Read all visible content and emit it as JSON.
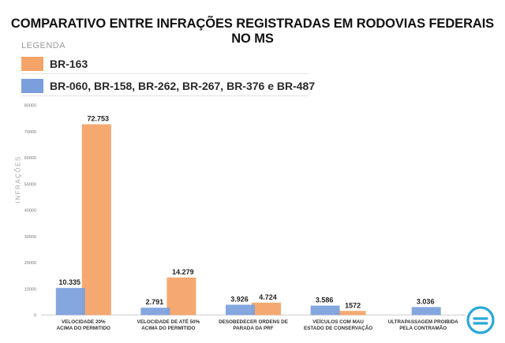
{
  "title": "COMPARATIVO ENTRE INFRAÇÕES REGISTRADAS EM RODOVIAS FEDERAIS NO MS",
  "legend": {
    "heading": "LEGENDA",
    "items": [
      {
        "label": "BR-163",
        "color": "#f4a469"
      },
      {
        "label": "BR-060, BR-158, BR-262, BR-267, BR-376 e BR-487",
        "color": "#7b9fdc"
      }
    ]
  },
  "logo": {
    "icon": "circled-e-logo-icon",
    "color": "#2aa8d8"
  },
  "chart_data": {
    "type": "bar",
    "ylabel": "INFRAÇÕES",
    "ylim": [
      0,
      80000
    ],
    "yticks": [
      0,
      10000,
      20000,
      30000,
      40000,
      50000,
      60000,
      70000,
      80000
    ],
    "grid": false,
    "legend_position": "top-left",
    "categories": [
      [
        "VELOCIDADE 20%",
        "ACIMA DO PERMITIDO"
      ],
      [
        "VELOCIDADE DE ATÉ 50%",
        "ACIMA DO PERMITIDO"
      ],
      [
        "DESOBEDECER ORDENS DE",
        "PARADA DA PRF"
      ],
      [
        "VEÍCULOS COM MAU",
        "ESTADO DE CONSERVAÇÃO"
      ],
      [
        "ULTRAPASSAGEM PROIBIDA",
        "PELA CONTRAMÃO"
      ]
    ],
    "series": [
      {
        "name": "BR-060, BR-158, BR-262, BR-267, BR-376 e BR-487",
        "color": "#7b9fdc",
        "values": [
          10335,
          2791,
          3926,
          3586,
          3036
        ],
        "labels": [
          "10.335",
          "2.791",
          "3.926",
          "3.586",
          "3.036"
        ]
      },
      {
        "name": "BR-163",
        "color": "#f4a469",
        "values": [
          72753,
          14279,
          4724,
          1572,
          null
        ],
        "labels": [
          "72.753",
          "14.279",
          "4.724",
          "1572",
          ""
        ]
      }
    ]
  }
}
